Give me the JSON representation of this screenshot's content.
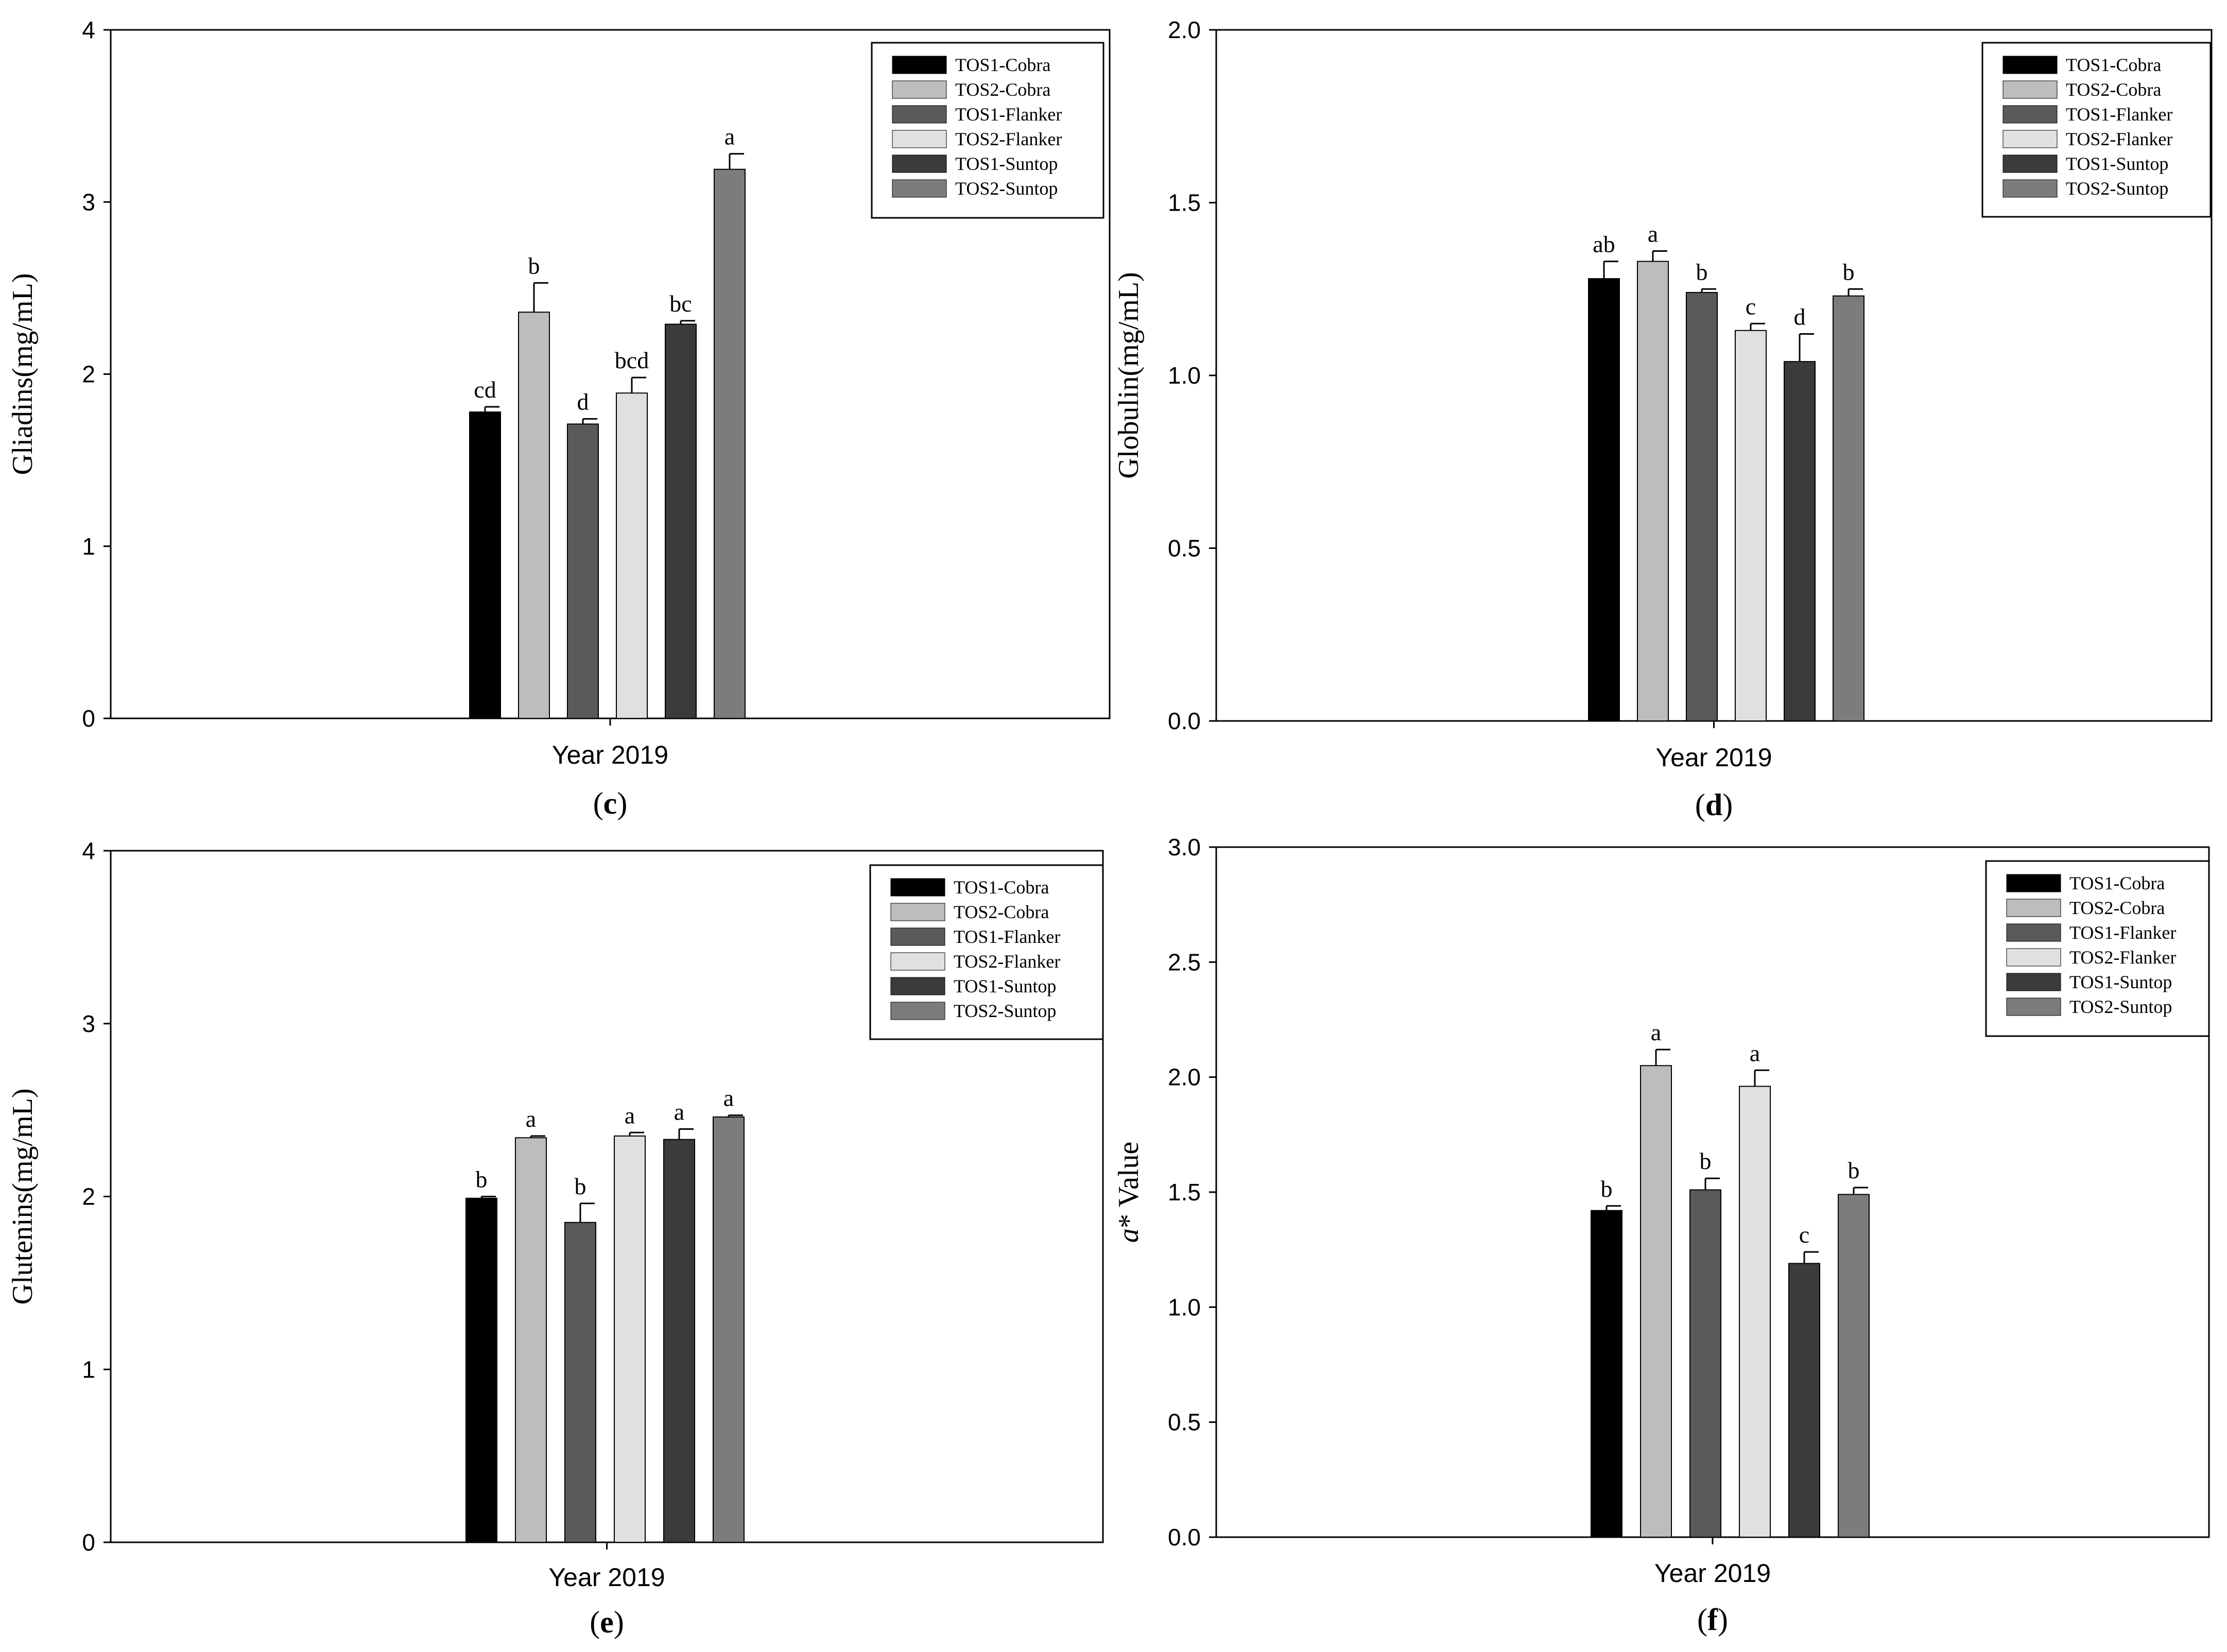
{
  "chart_data": [
    {
      "type": "bar",
      "panel": "c",
      "panel_label": "(c)",
      "title": "",
      "xlabel": "Year 2019",
      "ylabel": "Gliadins(mg/mL)",
      "ylim": [
        0,
        4
      ],
      "yticks": [
        "0",
        "1",
        "2",
        "3",
        "4"
      ],
      "categories": [
        "Year 2019"
      ],
      "series": [
        {
          "name": "TOS1-Cobra",
          "values": [
            1.78
          ],
          "error": [
            0.03
          ],
          "sig": "cd"
        },
        {
          "name": "TOS2-Cobra",
          "values": [
            2.36
          ],
          "error": [
            0.17
          ],
          "sig": "b"
        },
        {
          "name": "TOS1-Flanker",
          "values": [
            1.71
          ],
          "error": [
            0.03
          ],
          "sig": "d"
        },
        {
          "name": "TOS2-Flanker",
          "values": [
            1.89
          ],
          "error": [
            0.09
          ],
          "sig": "bcd"
        },
        {
          "name": "TOS1-Suntop",
          "values": [
            2.29
          ],
          "error": [
            0.02
          ],
          "sig": "bc"
        },
        {
          "name": "TOS2-Suntop",
          "values": [
            3.19
          ],
          "error": [
            0.09
          ],
          "sig": "a"
        }
      ],
      "legend_position": "top-right"
    },
    {
      "type": "bar",
      "panel": "d",
      "panel_label": "(d)",
      "title": "",
      "xlabel": "Year 2019",
      "ylabel": "Globulin(mg/mL)",
      "ylim": [
        0,
        2
      ],
      "yticks": [
        "0.0",
        "0.5",
        "1.0",
        "1.5",
        "2.0"
      ],
      "categories": [
        "Year 2019"
      ],
      "series": [
        {
          "name": "TOS1-Cobra",
          "values": [
            1.28
          ],
          "error": [
            0.05
          ],
          "sig": "ab"
        },
        {
          "name": "TOS2-Cobra",
          "values": [
            1.33
          ],
          "error": [
            0.03
          ],
          "sig": "a"
        },
        {
          "name": "TOS1-Flanker",
          "values": [
            1.24
          ],
          "error": [
            0.01
          ],
          "sig": "b"
        },
        {
          "name": "TOS2-Flanker",
          "values": [
            1.13
          ],
          "error": [
            0.02
          ],
          "sig": "c"
        },
        {
          "name": "TOS1-Suntop",
          "values": [
            1.04
          ],
          "error": [
            0.08
          ],
          "sig": "d"
        },
        {
          "name": "TOS2-Suntop",
          "values": [
            1.23
          ],
          "error": [
            0.02
          ],
          "sig": "b"
        }
      ],
      "legend_position": "top-right"
    },
    {
      "type": "bar",
      "panel": "e",
      "panel_label": "(e)",
      "title": "",
      "xlabel": "Year 2019",
      "ylabel": "Glutenins(mg/mL)",
      "ylim": [
        0,
        4
      ],
      "yticks": [
        "0",
        "1",
        "2",
        "3",
        "4"
      ],
      "categories": [
        "Year 2019"
      ],
      "series": [
        {
          "name": "TOS1-Cobra",
          "values": [
            1.99
          ],
          "error": [
            0.01
          ],
          "sig": "b"
        },
        {
          "name": "TOS2-Cobra",
          "values": [
            2.34
          ],
          "error": [
            0.01
          ],
          "sig": "a"
        },
        {
          "name": "TOS1-Flanker",
          "values": [
            1.85
          ],
          "error": [
            0.11
          ],
          "sig": "b"
        },
        {
          "name": "TOS2-Flanker",
          "values": [
            2.35
          ],
          "error": [
            0.02
          ],
          "sig": "a"
        },
        {
          "name": "TOS1-Suntop",
          "values": [
            2.33
          ],
          "error": [
            0.06
          ],
          "sig": "a"
        },
        {
          "name": "TOS2-Suntop",
          "values": [
            2.46
          ],
          "error": [
            0.01
          ],
          "sig": "a"
        }
      ],
      "legend_position": "top-right"
    },
    {
      "type": "bar",
      "panel": "f",
      "panel_label": "(f)",
      "title": "",
      "xlabel": "Year 2019",
      "ylabel": "a* Value",
      "ylabel_italic": "a",
      "ylabel_rest": "* Value",
      "ylim": [
        0,
        3
      ],
      "yticks": [
        "0.0",
        "0.5",
        "1.0",
        "1.5",
        "2.0",
        "2.5",
        "3.0"
      ],
      "categories": [
        "Year 2019"
      ],
      "series": [
        {
          "name": "TOS1-Cobra",
          "values": [
            1.42
          ],
          "error": [
            0.02
          ],
          "sig": "b"
        },
        {
          "name": "TOS2-Cobra",
          "values": [
            2.05
          ],
          "error": [
            0.07
          ],
          "sig": "a"
        },
        {
          "name": "TOS1-Flanker",
          "values": [
            1.51
          ],
          "error": [
            0.05
          ],
          "sig": "b"
        },
        {
          "name": "TOS2-Flanker",
          "values": [
            1.96
          ],
          "error": [
            0.07
          ],
          "sig": "a"
        },
        {
          "name": "TOS1-Suntop",
          "values": [
            1.19
          ],
          "error": [
            0.05
          ],
          "sig": "c"
        },
        {
          "name": "TOS2-Suntop",
          "values": [
            1.49
          ],
          "error": [
            0.03
          ],
          "sig": "b"
        }
      ],
      "legend_position": "top-right"
    }
  ],
  "colors": {
    "TOS1-Cobra": "#000000",
    "TOS2-Cobra": "#bdbdbd",
    "TOS1-Flanker": "#5a5a5a",
    "TOS2-Flanker": "#e0e0e0",
    "TOS1-Suntop": "#3b3b3b",
    "TOS2-Suntop": "#7c7c7c"
  }
}
